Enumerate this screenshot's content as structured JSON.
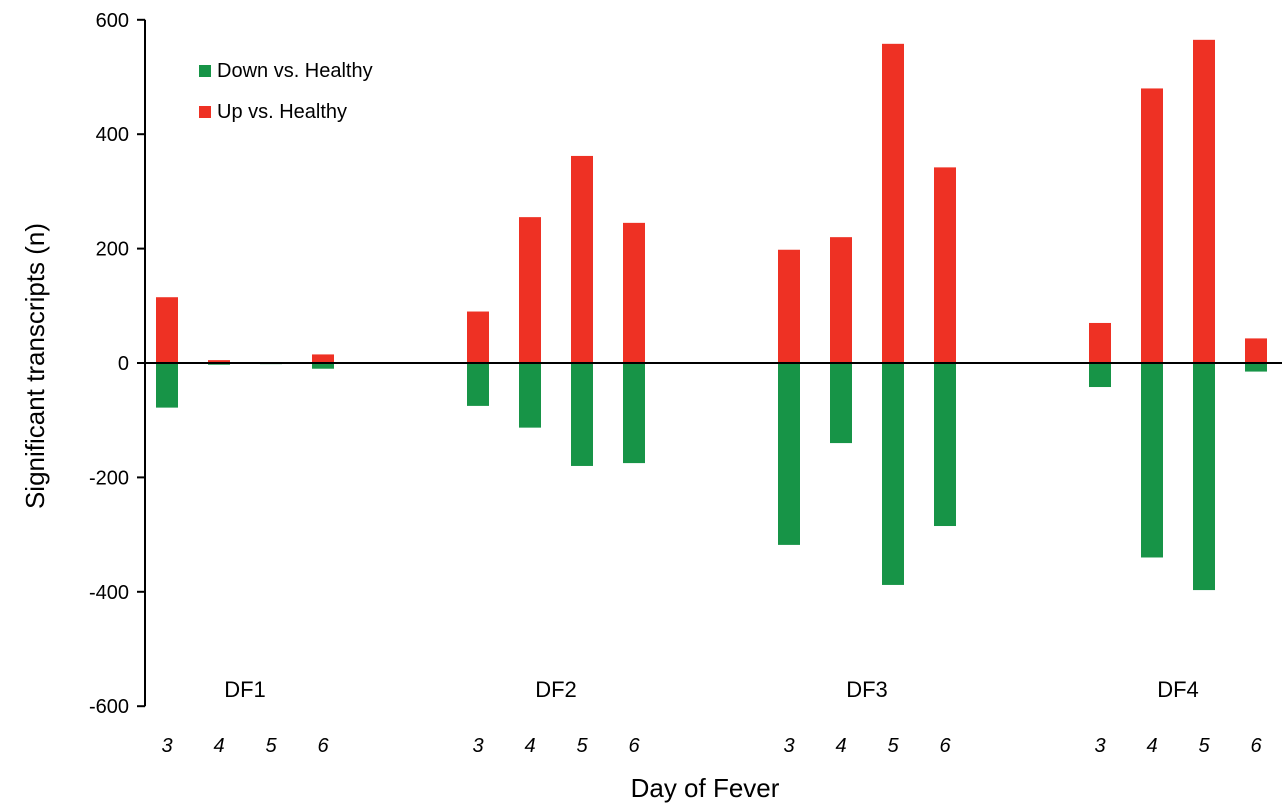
{
  "chart_data": {
    "type": "bar",
    "xlabel": "Day of Fever",
    "ylabel": "Significant transcripts (n)",
    "ylim": [
      -600,
      600
    ],
    "yticks": [
      600,
      400,
      200,
      0,
      -200,
      -400,
      -600
    ],
    "legend_position": "top-left",
    "grid": false,
    "colors": {
      "down": "#179447",
      "up": "#ee3124"
    },
    "series": [
      {
        "name": "Down vs. Healthy",
        "color_key": "down"
      },
      {
        "name": "Up vs. Healthy",
        "color_key": "up"
      }
    ],
    "groups": [
      {
        "label": "DF1",
        "categories": [
          "3",
          "4",
          "5",
          "6"
        ],
        "up": [
          115,
          5,
          1,
          15
        ],
        "down": [
          -78,
          -3,
          -2,
          -10
        ]
      },
      {
        "label": "DF2",
        "categories": [
          "3",
          "4",
          "5",
          "6"
        ],
        "up": [
          90,
          255,
          362,
          245
        ],
        "down": [
          -75,
          -113,
          -180,
          -175
        ]
      },
      {
        "label": "DF3",
        "categories": [
          "3",
          "4",
          "5",
          "6"
        ],
        "up": [
          198,
          220,
          558,
          342
        ],
        "down": [
          -318,
          -140,
          -388,
          -285
        ]
      },
      {
        "label": "DF4",
        "categories": [
          "3",
          "4",
          "5",
          "6"
        ],
        "up": [
          70,
          480,
          565,
          43
        ],
        "down": [
          -42,
          -340,
          -397,
          -15
        ]
      }
    ]
  }
}
